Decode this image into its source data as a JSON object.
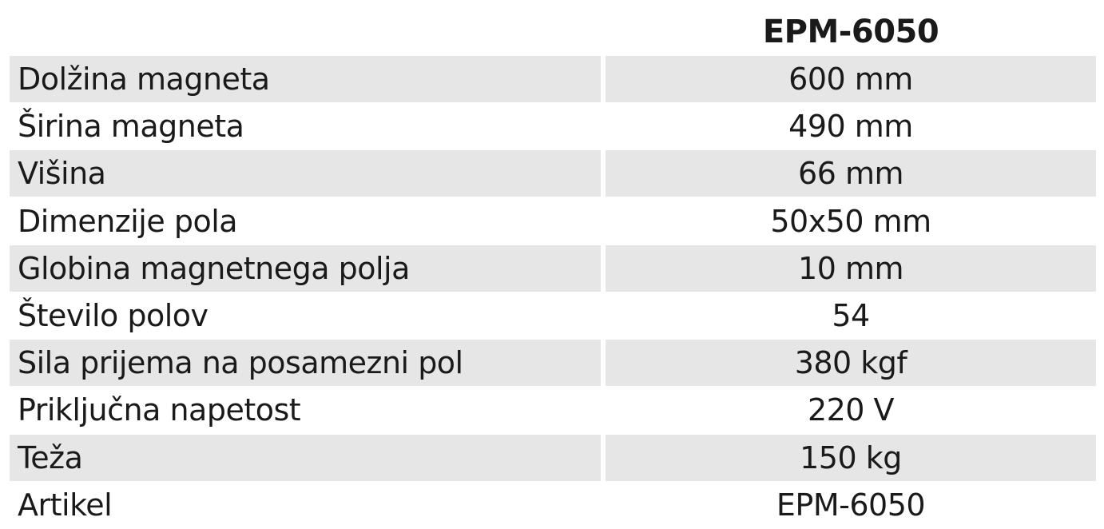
{
  "table": {
    "header": {
      "model": "EPM-6050"
    },
    "rows": [
      [
        "Dolžina magneta",
        "600 mm"
      ],
      [
        "Širina magneta",
        "490 mm"
      ],
      [
        "Višina",
        "66 mm"
      ],
      [
        "Dimenzije pola",
        "50x50 mm"
      ],
      [
        "Globina magnetnega polja",
        "10 mm"
      ],
      [
        "Število polov",
        "54"
      ],
      [
        "Sila prijema na posamezni pol",
        "380 kgf"
      ],
      [
        "Priključna napetost",
        "220 V"
      ],
      [
        "Teža",
        "150 kg"
      ],
      [
        "Artikel",
        "EPM-6050"
      ]
    ]
  }
}
